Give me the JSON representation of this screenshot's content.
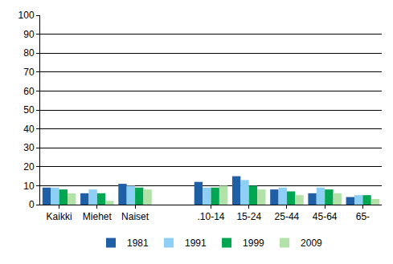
{
  "chart_data": {
    "type": "bar",
    "categories": [
      "Kaikki",
      "Miehet",
      "Naiset",
      null,
      ".10-14",
      "15-24",
      "25-44",
      "45-64",
      "65-"
    ],
    "series": [
      {
        "name": "1981",
        "color": "#1f5fa6",
        "values": [
          9,
          6,
          11,
          null,
          12,
          15,
          8,
          6,
          4
        ]
      },
      {
        "name": "1991",
        "color": "#8ecff5",
        "values": [
          9,
          8,
          10,
          null,
          9,
          13,
          9,
          9,
          5
        ]
      },
      {
        "name": "1999",
        "color": "#00a651",
        "values": [
          8,
          6,
          9,
          null,
          9,
          10,
          7,
          8,
          5
        ]
      },
      {
        "name": "2009",
        "color": "#b3e2a8",
        "values": [
          6,
          2,
          8,
          null,
          10,
          8,
          5,
          6,
          3
        ]
      }
    ],
    "ylim": [
      0,
      100
    ],
    "yticks": [
      0,
      10,
      20,
      30,
      40,
      50,
      60,
      70,
      80,
      90,
      100
    ],
    "grid": true,
    "legend": "bottom"
  }
}
